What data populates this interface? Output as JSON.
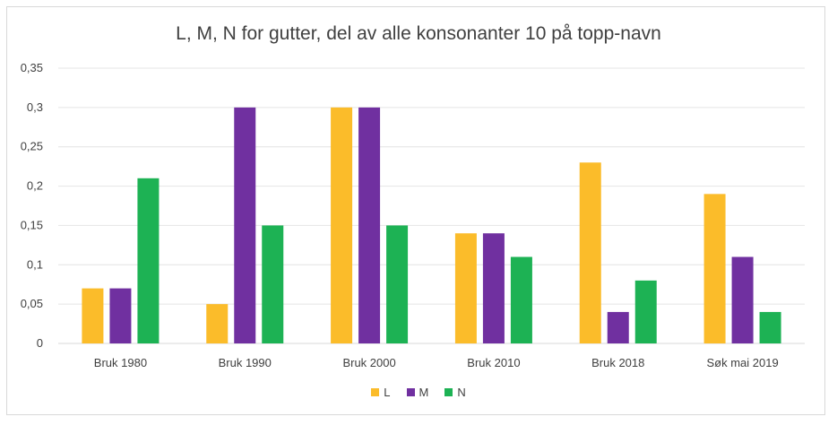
{
  "chart_data": {
    "type": "bar",
    "title": "L, M, N for gutter, del av alle konsonanter 10 på topp-navn",
    "categories": [
      "Bruk 1980",
      "Bruk 1990",
      "Bruk 2000",
      "Bruk 2010",
      "Bruk 2018",
      "Søk mai 2019"
    ],
    "series": [
      {
        "name": "L",
        "color": "#FBBC2A",
        "values": [
          0.07,
          0.05,
          0.3,
          0.14,
          0.23,
          0.19
        ]
      },
      {
        "name": "M",
        "color": "#7030A0",
        "values": [
          0.07,
          0.3,
          0.3,
          0.14,
          0.04,
          0.11
        ]
      },
      {
        "name": "N",
        "color": "#1DB254",
        "values": [
          0.21,
          0.15,
          0.15,
          0.11,
          0.08,
          0.04
        ]
      }
    ],
    "yticks": [
      "0",
      "0,05",
      "0,1",
      "0,15",
      "0,2",
      "0,25",
      "0,3",
      "0,35"
    ],
    "ylim": [
      0,
      0.35
    ],
    "grid": true,
    "legend_position": "bottom"
  }
}
